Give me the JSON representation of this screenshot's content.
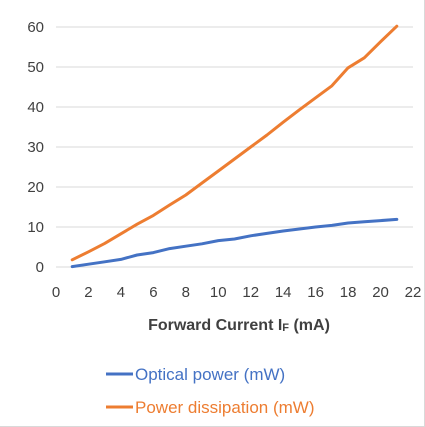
{
  "chart_data": {
    "type": "line",
    "xlabel": "Forward Current I",
    "xlabel_sub": "F",
    "xlabel_unit": " (mA)",
    "ylabel": "",
    "xlim": [
      0,
      22
    ],
    "ylim": [
      0,
      60
    ],
    "x_ticks": [
      0,
      2,
      4,
      6,
      8,
      10,
      12,
      14,
      16,
      18,
      20,
      22
    ],
    "y_ticks": [
      0,
      10,
      20,
      30,
      40,
      50,
      60
    ],
    "grid": "horizontal",
    "legend_position": "bottom",
    "x": [
      1,
      2,
      3,
      4,
      5,
      6,
      7,
      8,
      9,
      10,
      11,
      12,
      13,
      14,
      15,
      16,
      17,
      18,
      19,
      20,
      21
    ],
    "series": [
      {
        "name": "Optical power (mW)",
        "color": "#4472c4",
        "values": [
          0.1,
          0.7,
          1.3,
          1.9,
          3.0,
          3.6,
          4.6,
          5.2,
          5.8,
          6.6,
          7.0,
          7.8,
          8.4,
          9.0,
          9.5,
          10.0,
          10.4,
          11.0,
          11.3,
          11.6,
          11.9
        ]
      },
      {
        "name": "Power dissipation (mW)",
        "color": "#ed7d31",
        "values": [
          1.8,
          3.8,
          5.9,
          8.3,
          10.7,
          12.9,
          15.5,
          18.0,
          21.0,
          24.0,
          27.0,
          30.0,
          33.0,
          36.2,
          39.3,
          42.3,
          45.3,
          49.8,
          52.3,
          56.3,
          60.2
        ]
      }
    ]
  }
}
